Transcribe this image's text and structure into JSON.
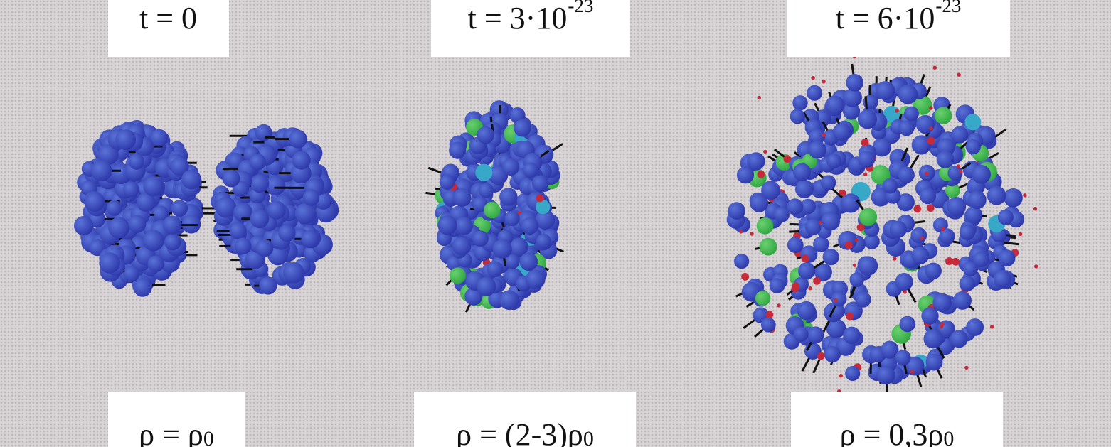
{
  "panels": [
    {
      "time": {
        "prefix": "t = 0",
        "exponent": ""
      },
      "density": {
        "prefix": "ρ = ρ",
        "subscript": "0",
        "suffix": ""
      }
    },
    {
      "time": {
        "prefix": "t = 3·10",
        "exponent": "-23"
      },
      "density": {
        "prefix": "ρ = (2-3)ρ",
        "subscript": "0",
        "suffix": ""
      }
    },
    {
      "time": {
        "prefix": "t = 6·10",
        "exponent": "-23"
      },
      "density": {
        "prefix": "ρ = 0,3ρ",
        "subscript": "0",
        "suffix": ""
      }
    }
  ],
  "colors": {
    "nucleon": "#2c36a8",
    "nucleon_highlight": "#5a73d8",
    "green_particle": "#2fa640",
    "red_particle": "#c42a3a",
    "cyan_particle": "#38a8c8",
    "background": "#d8d4d6"
  }
}
